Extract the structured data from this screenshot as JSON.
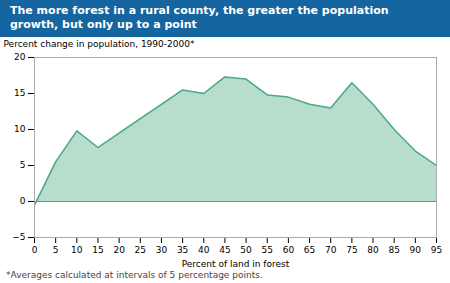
{
  "chart_data": {
    "type": "area",
    "title": "The more forest in a rural county, the greater the population growth, but only up to a point",
    "x_label": "Percent of land in forest",
    "y_label": "Percent change in population, 1990-2000*",
    "annotations": [
      "*Averages calculated at intervals of 5 percentage points."
    ],
    "x": [
      0,
      5,
      10,
      15,
      20,
      25,
      30,
      35,
      40,
      45,
      50,
      55,
      60,
      65,
      70,
      75,
      80,
      85,
      90,
      95
    ],
    "values": [
      -0.5,
      5.5,
      9.8,
      7.5,
      9.5,
      11.5,
      13.5,
      15.5,
      15.0,
      17.3,
      17.0,
      14.8,
      14.5,
      13.5,
      13.0,
      16.5,
      13.5,
      10.0,
      7.0,
      5.0
    ],
    "color": "#4aaa80",
    "xlim": [
      0,
      95
    ],
    "xticks": [
      0,
      5,
      10,
      15,
      20,
      25,
      30,
      35,
      40,
      45,
      50,
      55,
      60,
      65,
      70,
      75,
      80,
      85,
      90,
      95
    ],
    "ylim": [
      -5,
      20
    ],
    "yticks": [
      -5,
      0,
      5,
      10,
      15,
      20
    ],
    "grid": false
  }
}
